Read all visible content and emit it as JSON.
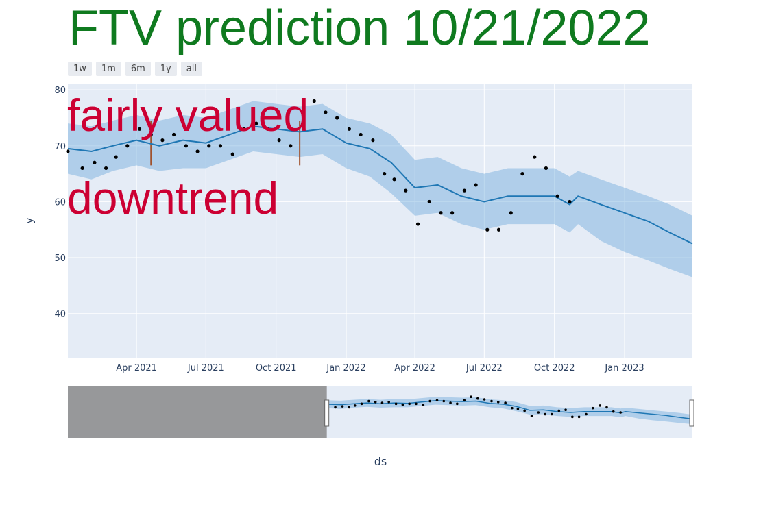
{
  "title": "FTV prediction 10/21/2022",
  "title_color": "#0f7a1f",
  "range_buttons": [
    "1w",
    "1m",
    "6m",
    "1y",
    "all"
  ],
  "annotations": {
    "line1": "fairly valued",
    "line2": "downtrend",
    "color": "#cc0033"
  },
  "chart_data": {
    "type": "line",
    "xlabel": "ds",
    "ylabel": "y",
    "xlim": [
      "2021-01-01",
      "2023-03-31"
    ],
    "ylim": [
      32,
      81
    ],
    "grid": true,
    "x_ticks": [
      "Apr 2021",
      "Jul 2021",
      "Oct 2021",
      "Jan 2022",
      "Apr 2022",
      "Jul 2022",
      "Oct 2022",
      "Jan 2023"
    ],
    "y_ticks": [
      40,
      50,
      60,
      70,
      80
    ],
    "colors": {
      "plot_bg": "#e5ecf6",
      "trend": "#1f77b4",
      "band": "rgba(110,170,220,0.45)",
      "actual": "#000000",
      "changepoint": "#a0522d",
      "selector_shade": "#8a8a8a"
    },
    "forecast": {
      "x": [
        "2021-01-01",
        "2021-02-01",
        "2021-03-01",
        "2021-04-01",
        "2021-05-01",
        "2021-06-01",
        "2021-07-01",
        "2021-08-01",
        "2021-09-01",
        "2021-10-01",
        "2021-11-01",
        "2021-12-01",
        "2022-01-01",
        "2022-02-01",
        "2022-03-01",
        "2022-04-01",
        "2022-05-01",
        "2022-06-01",
        "2022-07-01",
        "2022-08-01",
        "2022-09-01",
        "2022-10-01",
        "2022-10-21",
        "2022-11-01",
        "2022-12-01",
        "2023-01-01",
        "2023-02-01",
        "2023-03-01",
        "2023-03-31"
      ],
      "yhat": [
        69.5,
        69,
        70,
        71,
        70,
        71,
        70.5,
        72,
        73.5,
        73,
        72.5,
        73,
        70.5,
        69.5,
        67,
        62.5,
        63,
        61,
        60,
        61,
        61,
        61,
        59.5,
        61,
        59.5,
        58,
        56.5,
        54.5,
        52.5
      ],
      "lower": [
        65,
        64,
        65.5,
        66.5,
        65.5,
        66,
        66,
        67.5,
        69,
        68.5,
        68,
        68.5,
        66,
        64.5,
        61.5,
        57.5,
        58,
        56,
        55,
        56,
        56,
        56,
        54.5,
        56,
        53,
        51,
        49.5,
        48,
        46.5
      ],
      "upper": [
        74,
        73.5,
        74.5,
        75.5,
        74.5,
        75.5,
        75,
        76.5,
        78,
        77.5,
        77,
        77.5,
        75,
        74,
        72,
        67.5,
        68,
        66,
        65,
        66,
        66,
        66,
        64.5,
        65.5,
        64,
        62.5,
        61,
        59.5,
        57.5
      ]
    },
    "actual": {
      "x": [
        "2021-01-01",
        "2021-01-20",
        "2021-02-05",
        "2021-02-20",
        "2021-03-05",
        "2021-03-20",
        "2021-04-05",
        "2021-04-20",
        "2021-05-05",
        "2021-05-20",
        "2021-06-05",
        "2021-06-20",
        "2021-07-05",
        "2021-07-20",
        "2021-08-05",
        "2021-08-20",
        "2021-09-05",
        "2021-09-20",
        "2021-10-05",
        "2021-10-20",
        "2021-11-05",
        "2021-11-20",
        "2021-12-05",
        "2021-12-20",
        "2022-01-05",
        "2022-01-20",
        "2022-02-05",
        "2022-02-20",
        "2022-03-05",
        "2022-03-20",
        "2022-04-05",
        "2022-04-20",
        "2022-05-05",
        "2022-05-20",
        "2022-06-05",
        "2022-06-20",
        "2022-07-05",
        "2022-07-20",
        "2022-08-05",
        "2022-08-20",
        "2022-09-05",
        "2022-09-20",
        "2022-10-05",
        "2022-10-21"
      ],
      "y": [
        69,
        66,
        67,
        66,
        68,
        70,
        73,
        72,
        71,
        72,
        70,
        69,
        70,
        70,
        68.5,
        73,
        74,
        73,
        71,
        70,
        74,
        78,
        76,
        75,
        73,
        72,
        71,
        65,
        64,
        62,
        56,
        60,
        58,
        58,
        62,
        63,
        55,
        55,
        58,
        65,
        68,
        66,
        61,
        60
      ]
    },
    "changepoints": [
      "2021-04-20",
      "2021-11-01"
    ]
  }
}
